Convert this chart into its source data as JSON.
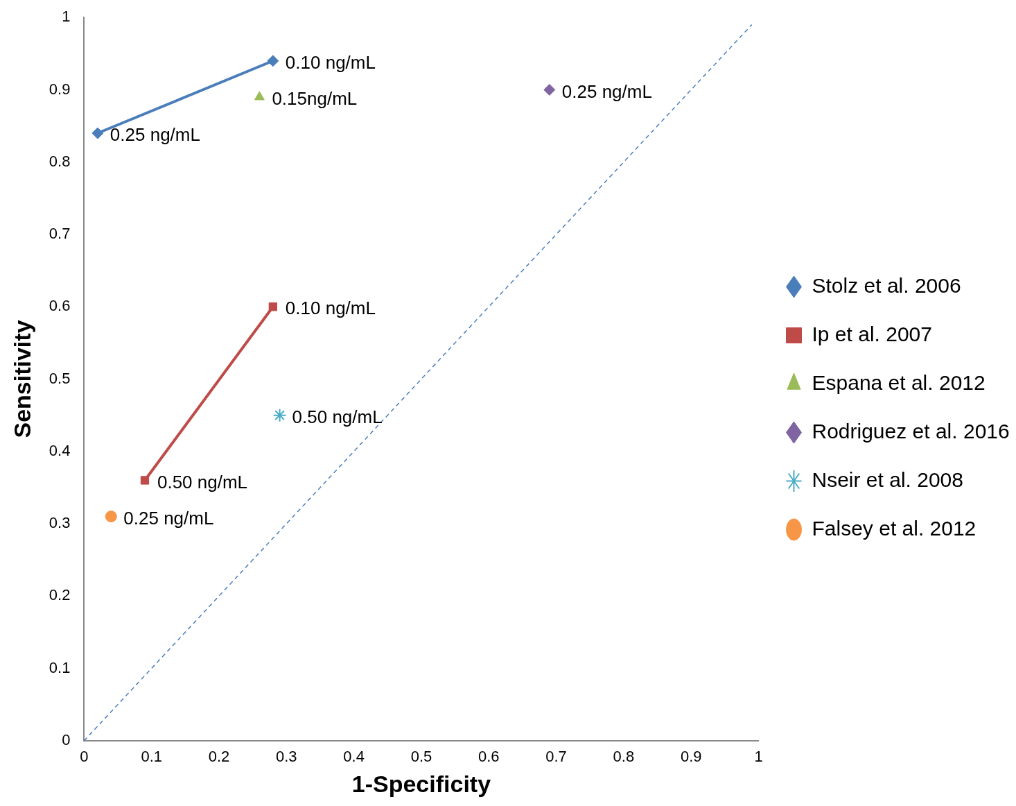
{
  "chart_data": {
    "type": "scatter",
    "xlabel": "1-Specificity",
    "ylabel": "Sensitivity",
    "xlim": [
      0,
      1
    ],
    "ylim": [
      0,
      1
    ],
    "xticks": [
      0,
      0.1,
      0.2,
      0.3,
      0.4,
      0.5,
      0.6,
      0.7,
      0.8,
      0.9,
      1
    ],
    "yticks": [
      0,
      0.1,
      0.2,
      0.3,
      0.4,
      0.5,
      0.6,
      0.7,
      0.8,
      0.9,
      1
    ],
    "grid": false,
    "legend": "right",
    "series": [
      {
        "name": "Stolz et al. 2006",
        "type": "line",
        "color": "#4a7ebb",
        "marker": "diamond",
        "x": [
          0.02,
          0.28
        ],
        "values": [
          0.84,
          0.94
        ]
      },
      {
        "name": "Ip et al. 2007",
        "type": "line",
        "color": "#be4b48",
        "marker": "square",
        "x": [
          0.09,
          0.28
        ],
        "values": [
          0.36,
          0.6
        ]
      },
      {
        "name": "Espana et al. 2012",
        "color": "#9bbb59",
        "marker": "triangle",
        "x": [
          0.26
        ],
        "values": [
          0.89
        ]
      },
      {
        "name": "Rodriguez et al. 2016",
        "color": "#8064a2",
        "marker": "diamond",
        "x": [
          0.69
        ],
        "values": [
          0.9
        ]
      },
      {
        "name": "Nseir et al. 2008",
        "color": "#4bacc6",
        "marker": "cross",
        "x": [
          0.29
        ],
        "values": [
          0.45
        ]
      },
      {
        "name": "Falsey et al. 2012",
        "color": "#f79646",
        "marker": "circle",
        "x": [
          0.04
        ],
        "values": [
          0.31
        ]
      },
      {
        "type": "line",
        "color": "#4a7ebb",
        "marker": "none",
        "line_style": "dashed",
        "x": [
          0,
          0.99
        ],
        "values": [
          0,
          0.99
        ]
      }
    ],
    "annotations": [
      {
        "text": "0.25 ng/mL",
        "x": 0.02,
        "y": 0.84
      },
      {
        "text": "0.10 ng/mL",
        "x": 0.28,
        "y": 0.94
      },
      {
        "text": "0.50 ng/mL",
        "x": 0.09,
        "y": 0.36
      },
      {
        "text": "0.10 ng/mL",
        "x": 0.28,
        "y": 0.6
      },
      {
        "text": "0.15ng/mL",
        "x": 0.26,
        "y": 0.89
      },
      {
        "text": "0.25 ng/mL",
        "x": 0.69,
        "y": 0.9
      },
      {
        "text": "0.50 ng/mL",
        "x": 0.29,
        "y": 0.45
      },
      {
        "text": "0.25 ng/mL",
        "x": 0.04,
        "y": 0.31
      }
    ]
  }
}
